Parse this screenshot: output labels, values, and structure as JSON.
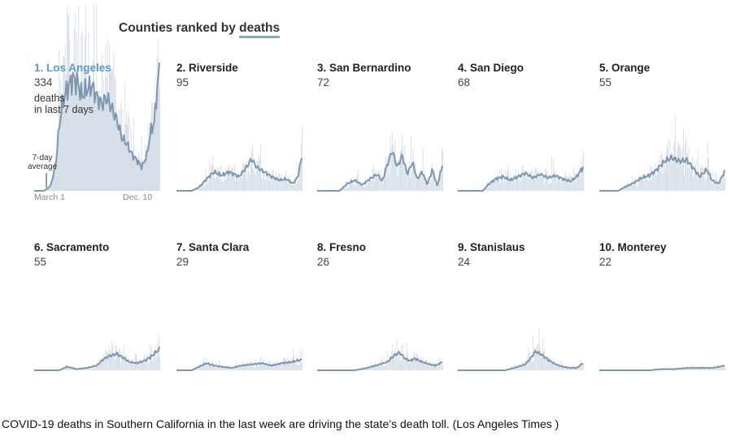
{
  "header": {
    "prefix": "Counties ranked by ",
    "metric": "deaths"
  },
  "annotations": {
    "deaths_note_line1": "deaths",
    "deaths_note_line2": "in last 7 days",
    "avg_line1": "7-day",
    "avg_line2": "average",
    "x_start": "March 1",
    "x_end": "Dec. 10"
  },
  "caption": "COVID-19 deaths in Southern California in the last week are driving the state’s death toll.  (Los Angeles Times )",
  "colors": {
    "bars": "#d5dde7",
    "line": "#7f96ad",
    "highlight": "#5b9bc9",
    "baseline": "#8fa6bf"
  },
  "chart_data": {
    "type": "small-multiples",
    "x_range": [
      "March 1",
      "Dec. 10"
    ],
    "y_shared": true,
    "y_max": 110,
    "panels": [
      {
        "rank": 1,
        "county": "Los Angeles",
        "label": "1. Los Angeles",
        "deaths_last_7_days": 334,
        "avg_profile": [
          [
            0,
            0
          ],
          [
            0.08,
            0
          ],
          [
            0.13,
            4
          ],
          [
            0.17,
            20
          ],
          [
            0.2,
            55
          ],
          [
            0.23,
            76
          ],
          [
            0.27,
            88
          ],
          [
            0.31,
            95
          ],
          [
            0.35,
            91
          ],
          [
            0.38,
            80
          ],
          [
            0.42,
            86
          ],
          [
            0.46,
            89
          ],
          [
            0.5,
            80
          ],
          [
            0.54,
            73
          ],
          [
            0.58,
            79
          ],
          [
            0.62,
            70
          ],
          [
            0.66,
            60
          ],
          [
            0.7,
            45
          ],
          [
            0.74,
            40
          ],
          [
            0.78,
            31
          ],
          [
            0.82,
            26
          ],
          [
            0.86,
            20
          ],
          [
            0.9,
            30
          ],
          [
            0.93,
            50
          ],
          [
            0.96,
            58
          ],
          [
            0.98,
            85
          ],
          [
            1,
            102
          ]
        ]
      },
      {
        "rank": 2,
        "county": "Riverside",
        "label": "2. Riverside",
        "deaths_last_7_days": 95,
        "avg_profile": [
          [
            0,
            0
          ],
          [
            0.12,
            0
          ],
          [
            0.18,
            3
          ],
          [
            0.24,
            10
          ],
          [
            0.3,
            16
          ],
          [
            0.36,
            13
          ],
          [
            0.42,
            16
          ],
          [
            0.5,
            12
          ],
          [
            0.56,
            20
          ],
          [
            0.6,
            27
          ],
          [
            0.64,
            20
          ],
          [
            0.7,
            16
          ],
          [
            0.76,
            12
          ],
          [
            0.82,
            9
          ],
          [
            0.88,
            10
          ],
          [
            0.93,
            6
          ],
          [
            0.97,
            12
          ],
          [
            1,
            28
          ]
        ]
      },
      {
        "rank": 3,
        "county": "San Bernardino",
        "label": "3. San Bernardino",
        "deaths_last_7_days": 72,
        "avg_profile": [
          [
            0,
            0
          ],
          [
            0.18,
            0
          ],
          [
            0.24,
            6
          ],
          [
            0.3,
            9
          ],
          [
            0.36,
            5
          ],
          [
            0.42,
            10
          ],
          [
            0.48,
            14
          ],
          [
            0.52,
            8
          ],
          [
            0.56,
            22
          ],
          [
            0.6,
            34
          ],
          [
            0.64,
            20
          ],
          [
            0.68,
            30
          ],
          [
            0.72,
            14
          ],
          [
            0.76,
            24
          ],
          [
            0.8,
            10
          ],
          [
            0.84,
            16
          ],
          [
            0.88,
            5
          ],
          [
            0.92,
            18
          ],
          [
            0.96,
            4
          ],
          [
            1,
            22
          ]
        ]
      },
      {
        "rank": 4,
        "county": "San Diego",
        "label": "4. San Diego",
        "deaths_last_7_days": 68,
        "avg_profile": [
          [
            0,
            0
          ],
          [
            0.2,
            0
          ],
          [
            0.24,
            5
          ],
          [
            0.3,
            10
          ],
          [
            0.36,
            12
          ],
          [
            0.42,
            9
          ],
          [
            0.48,
            12
          ],
          [
            0.54,
            15
          ],
          [
            0.6,
            11
          ],
          [
            0.66,
            14
          ],
          [
            0.72,
            11
          ],
          [
            0.78,
            13
          ],
          [
            0.84,
            10
          ],
          [
            0.9,
            8
          ],
          [
            0.95,
            12
          ],
          [
            1,
            20
          ]
        ]
      },
      {
        "rank": 5,
        "county": "Orange",
        "label": "5. Orange",
        "deaths_last_7_days": 55,
        "avg_profile": [
          [
            0,
            0
          ],
          [
            0.15,
            0
          ],
          [
            0.2,
            3
          ],
          [
            0.28,
            7
          ],
          [
            0.34,
            11
          ],
          [
            0.4,
            13
          ],
          [
            0.46,
            18
          ],
          [
            0.52,
            25
          ],
          [
            0.58,
            28
          ],
          [
            0.64,
            25
          ],
          [
            0.7,
            26
          ],
          [
            0.76,
            18
          ],
          [
            0.8,
            12
          ],
          [
            0.86,
            18
          ],
          [
            0.9,
            9
          ],
          [
            0.95,
            6
          ],
          [
            1,
            16
          ]
        ]
      },
      {
        "rank": 6,
        "county": "Sacramento",
        "label": "6. Sacramento",
        "deaths_last_7_days": 55,
        "avg_profile": [
          [
            0,
            0
          ],
          [
            0.2,
            0
          ],
          [
            0.26,
            3
          ],
          [
            0.34,
            1
          ],
          [
            0.42,
            2
          ],
          [
            0.5,
            4
          ],
          [
            0.56,
            10
          ],
          [
            0.6,
            12
          ],
          [
            0.66,
            14
          ],
          [
            0.72,
            10
          ],
          [
            0.76,
            7
          ],
          [
            0.82,
            6
          ],
          [
            0.88,
            8
          ],
          [
            0.94,
            12
          ],
          [
            1,
            18
          ]
        ]
      },
      {
        "rank": 7,
        "county": "Santa Clara",
        "label": "7. Santa Clara",
        "deaths_last_7_days": 29,
        "avg_profile": [
          [
            0,
            0
          ],
          [
            0.12,
            0
          ],
          [
            0.18,
            3
          ],
          [
            0.24,
            6
          ],
          [
            0.3,
            4
          ],
          [
            0.36,
            3
          ],
          [
            0.44,
            2
          ],
          [
            0.52,
            4
          ],
          [
            0.6,
            5
          ],
          [
            0.68,
            6
          ],
          [
            0.76,
            4
          ],
          [
            0.84,
            6
          ],
          [
            0.92,
            7
          ],
          [
            1,
            9
          ]
        ]
      },
      {
        "rank": 8,
        "county": "Fresno",
        "label": "8. Fresno",
        "deaths_last_7_days": 26,
        "avg_profile": [
          [
            0,
            0
          ],
          [
            0.3,
            0
          ],
          [
            0.4,
            2
          ],
          [
            0.5,
            5
          ],
          [
            0.56,
            7
          ],
          [
            0.62,
            13
          ],
          [
            0.66,
            15
          ],
          [
            0.7,
            10
          ],
          [
            0.74,
            8
          ],
          [
            0.78,
            10
          ],
          [
            0.84,
            7
          ],
          [
            0.9,
            5
          ],
          [
            0.95,
            4
          ],
          [
            1,
            7
          ]
        ]
      },
      {
        "rank": 9,
        "county": "Stanislaus",
        "label": "9. Stanislaus",
        "deaths_last_7_days": 24,
        "avg_profile": [
          [
            0,
            0
          ],
          [
            0.38,
            0
          ],
          [
            0.48,
            3
          ],
          [
            0.54,
            5
          ],
          [
            0.58,
            10
          ],
          [
            0.62,
            16
          ],
          [
            0.66,
            14
          ],
          [
            0.72,
            9
          ],
          [
            0.78,
            5
          ],
          [
            0.84,
            3
          ],
          [
            0.9,
            2
          ],
          [
            0.95,
            2
          ],
          [
            1,
            6
          ]
        ]
      },
      {
        "rank": 10,
        "county": "Monterey",
        "label": "10. Monterey",
        "deaths_last_7_days": 22,
        "avg_profile": [
          [
            0,
            0
          ],
          [
            0.4,
            0
          ],
          [
            0.5,
            1
          ],
          [
            0.6,
            1
          ],
          [
            0.7,
            2
          ],
          [
            0.8,
            2
          ],
          [
            0.9,
            2
          ],
          [
            0.96,
            3
          ],
          [
            1,
            4
          ]
        ]
      }
    ]
  }
}
